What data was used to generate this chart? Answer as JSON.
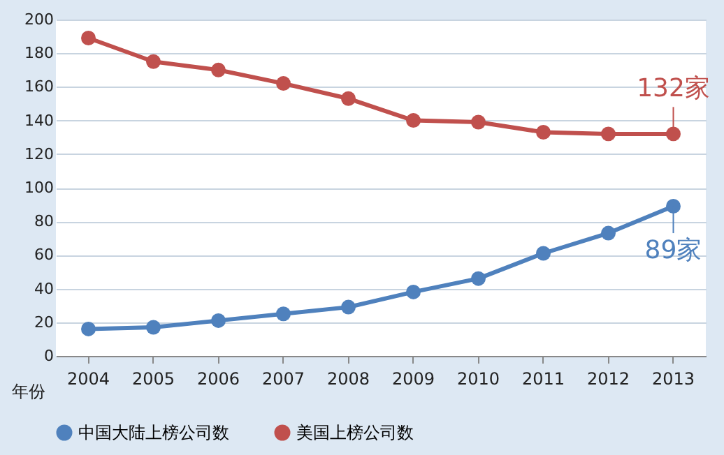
{
  "chart_data": {
    "type": "line",
    "categories": [
      "2004",
      "2005",
      "2006",
      "2007",
      "2008",
      "2009",
      "2010",
      "2011",
      "2012",
      "2013"
    ],
    "xlabel": "年份",
    "series": [
      {
        "name": "中国大陆上榜公司数",
        "color": "#4f81bd",
        "values": [
          16,
          17,
          21,
          25,
          29,
          38,
          46,
          61,
          73,
          89
        ]
      },
      {
        "name": "美国上榜公司数",
        "color": "#c0504d",
        "values": [
          189,
          175,
          170,
          162,
          153,
          140,
          139,
          133,
          132,
          132
        ]
      }
    ],
    "ylim": [
      0,
      200
    ],
    "yticks": [
      0,
      20,
      40,
      60,
      80,
      100,
      120,
      140,
      160,
      180,
      200
    ],
    "annotations": [
      {
        "text": "132家",
        "x": "2013",
        "y": 132
      },
      {
        "text": "89家",
        "x": "2013",
        "y": 89
      }
    ],
    "grid": "y",
    "legend": "bottom",
    "marker": "circle"
  }
}
